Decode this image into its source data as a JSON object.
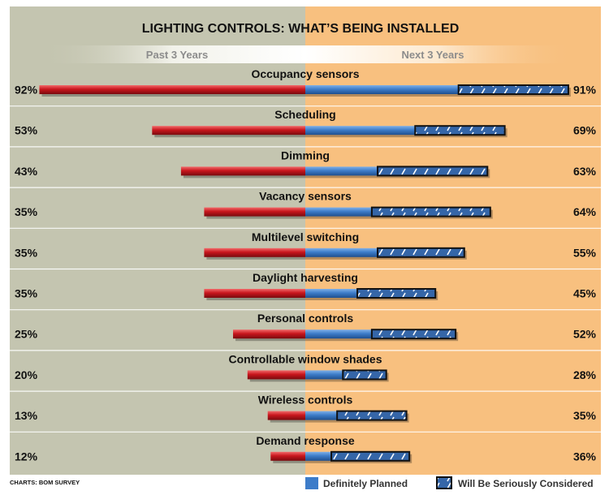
{
  "chart_data": {
    "type": "bar",
    "title": "LIGHTING CONTROLS: WHAT’S BEING INSTALLED",
    "left_header": "Past 3 Years",
    "right_header": "Next 3 Years",
    "categories": [
      "Occupancy sensors",
      "Scheduling",
      "Dimming",
      "Vacancy sensors",
      "Multilevel switching",
      "Daylight harvesting",
      "Personal controls",
      "Controllable window shades",
      "Wireless controls",
      "Demand response"
    ],
    "past_3_years": [
      92,
      53,
      43,
      35,
      35,
      35,
      25,
      20,
      13,
      12
    ],
    "past_labels": [
      "92%",
      "53%",
      "43%",
      "35%",
      "35%",
      "35%",
      "25%",
      "20%",
      "13%",
      "12%"
    ],
    "next_3_years_total": [
      91,
      69,
      63,
      64,
      55,
      45,
      52,
      28,
      35,
      36
    ],
    "next_labels": [
      "91%",
      "69%",
      "63%",
      "64%",
      "55%",
      "45%",
      "52%",
      "28%",
      "35%",
      "36%"
    ],
    "series": [
      {
        "name": "Definitely Planned",
        "values": [
          53,
          38,
          25,
          23,
          25,
          18,
          23,
          13,
          11,
          9
        ]
      },
      {
        "name": "Will Be Seriously Considered",
        "values": [
          38,
          31,
          38,
          41,
          30,
          27,
          29,
          15,
          24,
          27
        ]
      }
    ],
    "legend_position": "bottom-right",
    "source": "CHARTS: BOM SURVEY",
    "colors": {
      "left_panel": "#c4c5b0",
      "right_panel": "#f8c07f",
      "past_bar": "#c8161d",
      "planned_bar": "#3d7cc9",
      "considered_bar": "#2e5a9c"
    }
  }
}
